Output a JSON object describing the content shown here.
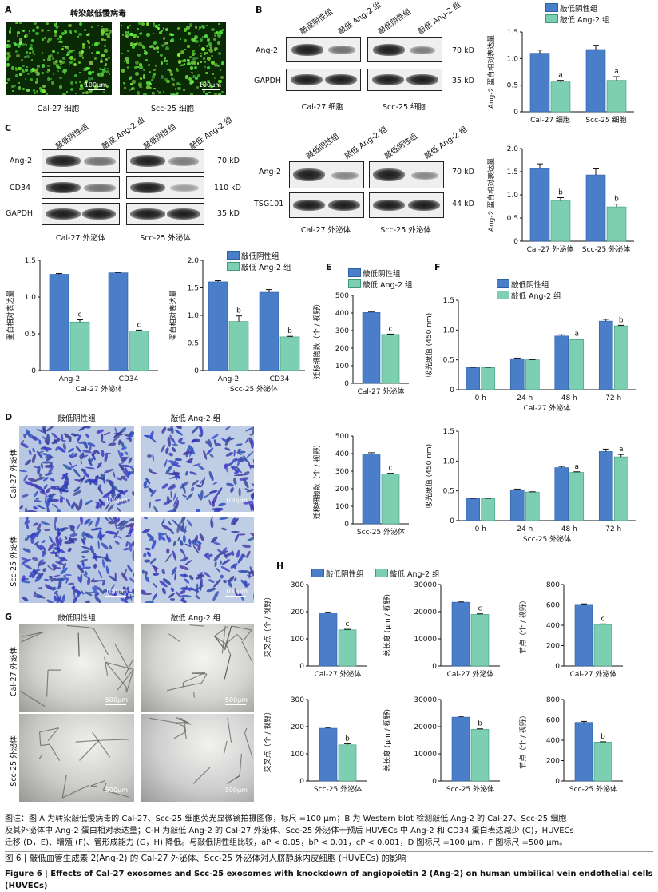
{
  "colors": {
    "neg": "#4a7ec8",
    "kd": "#7ccfb0",
    "neg_dark": "#2d5fa8",
    "kd_dark": "#3e9a7b"
  },
  "legend": {
    "neg": "敲低阴性组",
    "kd": "敲低 Ang-2 组"
  },
  "panelA": {
    "letter": "A",
    "title": "转染敲低慢病毒",
    "img1_label": "Cal-27 细胞",
    "img2_label": "Scc-25 细胞",
    "scale": "100μm"
  },
  "panelB": {
    "letter": "B",
    "lane1": "敲低阴性组",
    "lane2": "敲低 Ang-2 组",
    "row1": "Ang-2",
    "row2": "GAPDH",
    "kd1": "70 kD",
    "kd2": "35 kD",
    "grp1": "Cal-27 细胞",
    "grp2": "Scc-25 细胞"
  },
  "panelC": {
    "letter": "C",
    "lane1": "敲低阴性组",
    "lane2": "敲低 Ang-2 组",
    "row1": "Ang-2",
    "row2": "CD34",
    "row3": "GAPDH",
    "kd1": "70 kD",
    "kd2": "110 kD",
    "kd3": "35 kD",
    "grp1": "Cal-27 外泌体",
    "grp2": "Scc-25 外泌体"
  },
  "panelC2": {
    "row1": "Ang-2",
    "row2": "TSG101",
    "kd1": "70 kD",
    "kd2": "44 kD",
    "grp1": "Cal-27 外泌体",
    "grp2": "Scc-25 外泌体"
  },
  "panelD": {
    "letter": "D",
    "col1": "敲低阴性组",
    "col2": "敲低 Ang-2 组",
    "row1": "Cal-27 外泌体",
    "row2": "Scc-25 外泌体",
    "scale": "100μm"
  },
  "panelE": {
    "letter": "E"
  },
  "panelF": {
    "letter": "F"
  },
  "panelG": {
    "letter": "G",
    "col1": "敲低阴性组",
    "col2": "敲低 Ang-2 组",
    "row1": "Cal-27 外泌体",
    "row2": "Scc-25 外泌体",
    "scale": "500μm"
  },
  "panelH": {
    "letter": "H"
  },
  "chart_data": [
    {
      "id": "B",
      "type": "bar",
      "categories": [
        "Cal-27 细胞",
        "Scc-25 细胞"
      ],
      "ylabel": "Ang-2 蛋白相对表达量",
      "ylim": [
        0,
        1.5
      ],
      "yticks": [
        0,
        0.5,
        1.0,
        1.5
      ],
      "series": [
        {
          "name": "敲低阴性组",
          "values": [
            1.1,
            1.17
          ],
          "err": [
            0.06,
            0.08
          ]
        },
        {
          "name": "敲低 Ang-2 组",
          "values": [
            0.56,
            0.59
          ],
          "err": [
            0.03,
            0.07
          ]
        }
      ],
      "sig": [
        "a",
        "a"
      ]
    },
    {
      "id": "C2",
      "type": "bar",
      "categories": [
        "Cal-27 外泌体",
        "Scc-25 外泌体"
      ],
      "ylabel": "Ang-2 蛋白相对表达量",
      "ylim": [
        0,
        2.0
      ],
      "yticks": [
        0,
        0.5,
        1.0,
        1.5,
        2.0
      ],
      "series": [
        {
          "name": "敲低阴性组",
          "values": [
            1.57,
            1.43
          ],
          "err": [
            0.1,
            0.13
          ]
        },
        {
          "name": "敲低 Ang-2 组",
          "values": [
            0.87,
            0.74
          ],
          "err": [
            0.07,
            0.06
          ]
        }
      ],
      "sig": [
        "b",
        "b"
      ]
    },
    {
      "id": "C3",
      "type": "bar",
      "categories": [
        "Ang-2",
        "CD34"
      ],
      "xlabel": "Cal-27 外泌体",
      "ylabel": "蛋白相对表达量",
      "ylim": [
        0,
        1.5
      ],
      "yticks": [
        0,
        0.5,
        1.0,
        1.5
      ],
      "series": [
        {
          "name": "敲低阴性组",
          "values": [
            1.31,
            1.33
          ],
          "err": [
            0.01,
            0.005
          ]
        },
        {
          "name": "敲低 Ang-2 组",
          "values": [
            0.66,
            0.54
          ],
          "err": [
            0.03,
            0.01
          ]
        }
      ],
      "sig": [
        "c",
        "c"
      ]
    },
    {
      "id": "C4",
      "type": "bar",
      "categories": [
        "Ang-2",
        "CD34"
      ],
      "xlabel": "Scc-25 外泌体",
      "ylabel": "蛋白相对表达量",
      "ylim": [
        0,
        2.0
      ],
      "yticks": [
        0,
        0.5,
        1.0,
        1.5,
        2.0
      ],
      "series": [
        {
          "name": "敲低阴性组",
          "values": [
            1.61,
            1.42
          ],
          "err": [
            0.02,
            0.05
          ]
        },
        {
          "name": "敲低 Ang-2 组",
          "values": [
            0.89,
            0.61
          ],
          "err": [
            0.1,
            0.01
          ]
        }
      ],
      "sig": [
        "b",
        "b"
      ]
    },
    {
      "id": "E1",
      "type": "bar",
      "categories": [
        "Cal-27 外泌体"
      ],
      "ylabel": "迁移细胞数（个 / 视野）",
      "ylim": [
        0,
        500
      ],
      "yticks": [
        0,
        100,
        200,
        300,
        400,
        500
      ],
      "series": [
        {
          "name": "敲低阴性组",
          "values": [
            403
          ],
          "err": [
            5
          ]
        },
        {
          "name": "敲低 Ang-2 组",
          "values": [
            278
          ],
          "err": [
            2
          ]
        }
      ],
      "sig": [
        "c"
      ]
    },
    {
      "id": "E2",
      "type": "bar",
      "categories": [
        "Scc-25 外泌体"
      ],
      "ylabel": "迁移细胞数（个 / 视野）",
      "ylim": [
        0,
        500
      ],
      "yticks": [
        0,
        100,
        200,
        300,
        400,
        500
      ],
      "series": [
        {
          "name": "敲低阴性组",
          "values": [
            398
          ],
          "err": [
            7
          ]
        },
        {
          "name": "敲低 Ang-2 组",
          "values": [
            285
          ],
          "err": [
            3
          ]
        }
      ],
      "sig": [
        "c"
      ]
    },
    {
      "id": "F1",
      "type": "bar",
      "categories": [
        "0 h",
        "24 h",
        "48 h",
        "72 h"
      ],
      "xlabel": "Cal-27 外泌体",
      "ylabel": "吸光度值 (450 nm)",
      "ylim": [
        0,
        1.5
      ],
      "yticks": [
        0,
        0.5,
        1.0,
        1.5
      ],
      "series": [
        {
          "name": "敲低阴性组",
          "values": [
            0.37,
            0.52,
            0.9,
            1.15
          ],
          "err": [
            0.005,
            0.01,
            0.02,
            0.03
          ]
        },
        {
          "name": "敲低 Ang-2 组",
          "values": [
            0.37,
            0.5,
            0.84,
            1.07
          ],
          "err": [
            0.005,
            0.005,
            0.01,
            0.01
          ]
        }
      ],
      "sig": [
        "",
        "",
        "a",
        "b"
      ]
    },
    {
      "id": "F2",
      "type": "bar",
      "categories": [
        "0 h",
        "24 h",
        "48 h",
        "72 h"
      ],
      "xlabel": "Scc-25 外泌体",
      "ylabel": "吸光度值 (450 nm)",
      "ylim": [
        0,
        1.5
      ],
      "yticks": [
        0,
        0.5,
        1.0,
        1.5
      ],
      "series": [
        {
          "name": "敲低阴性组",
          "values": [
            0.37,
            0.52,
            0.89,
            1.16
          ],
          "err": [
            0.005,
            0.01,
            0.02,
            0.04
          ]
        },
        {
          "name": "敲低 Ang-2 组",
          "values": [
            0.37,
            0.48,
            0.81,
            1.07
          ],
          "err": [
            0.005,
            0.005,
            0.01,
            0.04
          ]
        }
      ],
      "sig": [
        "",
        "",
        "a",
        "a"
      ]
    },
    {
      "id": "H1",
      "type": "bar",
      "categories": [
        "Cal-27 外泌体"
      ],
      "ylabel": "交叉点（个 / 视野）",
      "ylim": [
        0,
        300
      ],
      "yticks": [
        0,
        100,
        200,
        300
      ],
      "series": [
        {
          "name": "敲低阴性组",
          "values": [
            195
          ],
          "err": [
            3
          ]
        },
        {
          "name": "敲低 Ang-2 组",
          "values": [
            133
          ],
          "err": [
            2
          ]
        }
      ],
      "sig": [
        "c"
      ]
    },
    {
      "id": "H2",
      "type": "bar",
      "categories": [
        "Cal-27 外泌体"
      ],
      "ylabel": "总长度 (μm / 视野)",
      "ylim": [
        0,
        30000
      ],
      "yticks": [
        0,
        10000,
        20000,
        30000
      ],
      "series": [
        {
          "name": "敲低阴性组",
          "values": [
            23500
          ],
          "err": [
            100
          ]
        },
        {
          "name": "敲低 Ang-2 组",
          "values": [
            19000
          ],
          "err": [
            200
          ]
        }
      ],
      "sig": [
        "c"
      ]
    },
    {
      "id": "H3",
      "type": "bar",
      "categories": [
        "Cal-27 外泌体"
      ],
      "ylabel": "节点（个 / 视野）",
      "ylim": [
        0,
        800
      ],
      "yticks": [
        0,
        200,
        400,
        600,
        800
      ],
      "series": [
        {
          "name": "敲低阴性组",
          "values": [
            605
          ],
          "err": [
            5
          ]
        },
        {
          "name": "敲低 Ang-2 组",
          "values": [
            408
          ],
          "err": [
            5
          ]
        }
      ],
      "sig": [
        "c"
      ]
    },
    {
      "id": "H4",
      "type": "bar",
      "categories": [
        "Scc-25 外泌体"
      ],
      "ylabel": "交叉点（个 / 视野）",
      "ylim": [
        0,
        300
      ],
      "yticks": [
        0,
        100,
        200,
        300
      ],
      "series": [
        {
          "name": "敲低阴性组",
          "values": [
            194
          ],
          "err": [
            3
          ]
        },
        {
          "name": "敲低 Ang-2 组",
          "values": [
            133
          ],
          "err": [
            4
          ]
        }
      ],
      "sig": [
        "b"
      ]
    },
    {
      "id": "H5",
      "type": "bar",
      "categories": [
        "Scc-25 外泌体"
      ],
      "ylabel": "总长度 (μm / 视野)",
      "ylim": [
        0,
        30000
      ],
      "yticks": [
        0,
        10000,
        20000,
        30000
      ],
      "series": [
        {
          "name": "敲低阴性组",
          "values": [
            23500
          ],
          "err": [
            300
          ]
        },
        {
          "name": "敲低 Ang-2 组",
          "values": [
            19000
          ],
          "err": [
            200
          ]
        }
      ],
      "sig": [
        "b"
      ]
    },
    {
      "id": "H6",
      "type": "bar",
      "categories": [
        "Scc-25 外泌体"
      ],
      "ylabel": "节点（个 / 视野）",
      "ylim": [
        0,
        800
      ],
      "yticks": [
        0,
        200,
        400,
        600,
        800
      ],
      "series": [
        {
          "name": "敲低阴性组",
          "values": [
            575
          ],
          "err": [
            10
          ]
        },
        {
          "name": "敲低 Ang-2 组",
          "values": [
            382
          ],
          "err": [
            3
          ]
        }
      ],
      "sig": [
        "b"
      ]
    }
  ],
  "caption": {
    "note_line1": "图注：图 A 为转染敲低慢病毒的 Cal-27、Scc-25 细胞荧光显微镜拍摄图像，标尺 =100 μm；B 为 Western blot 检测敲低 Ang-2 的 Cal-27、Scc-25 细胞",
    "note_line2": "及其外泌体中 Ang-2 蛋白相对表达量；C-H 为敲低 Ang-2 的 Cal-27 外泌体、Scc-25 外泌体干预后 HUVECs 中 Ang-2 和 CD34 蛋白表达减少 (C)，HUVECs",
    "note_line3": "迁移 (D，E)、增殖 (F)、管形成能力 (G，H) 降低。与敲低阴性组比较，aP < 0.05，bP < 0.01，cP < 0.001，D 图标尺 =100 μm，F 图标尺 =500 μm。",
    "fig_cn": "图 6 | 敲低血管生成素 2(Ang-2) 的 Cal-27 外泌体、Scc-25 外泌体对人脐静脉内皮细胞 (HUVECs) 的影响",
    "fig_en": "Figure 6 | Effects of Cal-27 exosomes and Scc-25 exosomes with knockdown of angiopoietin 2 (Ang-2) on human umbilical vein endothelial cells (HUVECs)"
  }
}
